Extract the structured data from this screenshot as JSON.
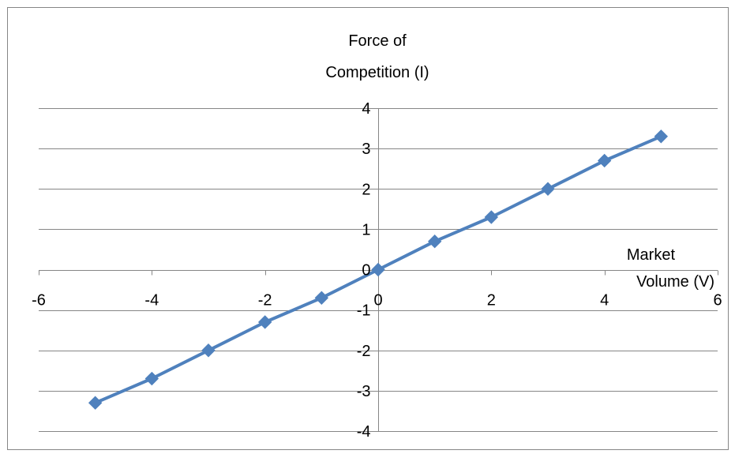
{
  "chart_data": {
    "type": "scatter",
    "title": "",
    "ylabel_lines": [
      "Force of",
      "Competition (I)"
    ],
    "xlabel_lines": [
      "Market",
      "Volume (V)"
    ],
    "xlim": [
      -6,
      6
    ],
    "ylim": [
      -4,
      4
    ],
    "x_ticks": [
      "-6",
      "-4",
      "-2",
      "0",
      "2",
      "4",
      "6"
    ],
    "y_ticks": [
      "4",
      "3",
      "2",
      "1",
      "0",
      "-1",
      "-2",
      "-3",
      "-4"
    ],
    "grid": "horizontal major gridlines",
    "legend": "none",
    "series": [
      {
        "color": "#4f81bd",
        "marker": "diamond",
        "x": [
          -5,
          -4,
          -3,
          -2,
          -1,
          0,
          1,
          2,
          3,
          4,
          5
        ],
        "y": [
          -3.3,
          -2.7,
          -2.0,
          -1.3,
          -0.7,
          0.0,
          0.7,
          1.3,
          2.0,
          2.7,
          3.3
        ]
      }
    ]
  }
}
